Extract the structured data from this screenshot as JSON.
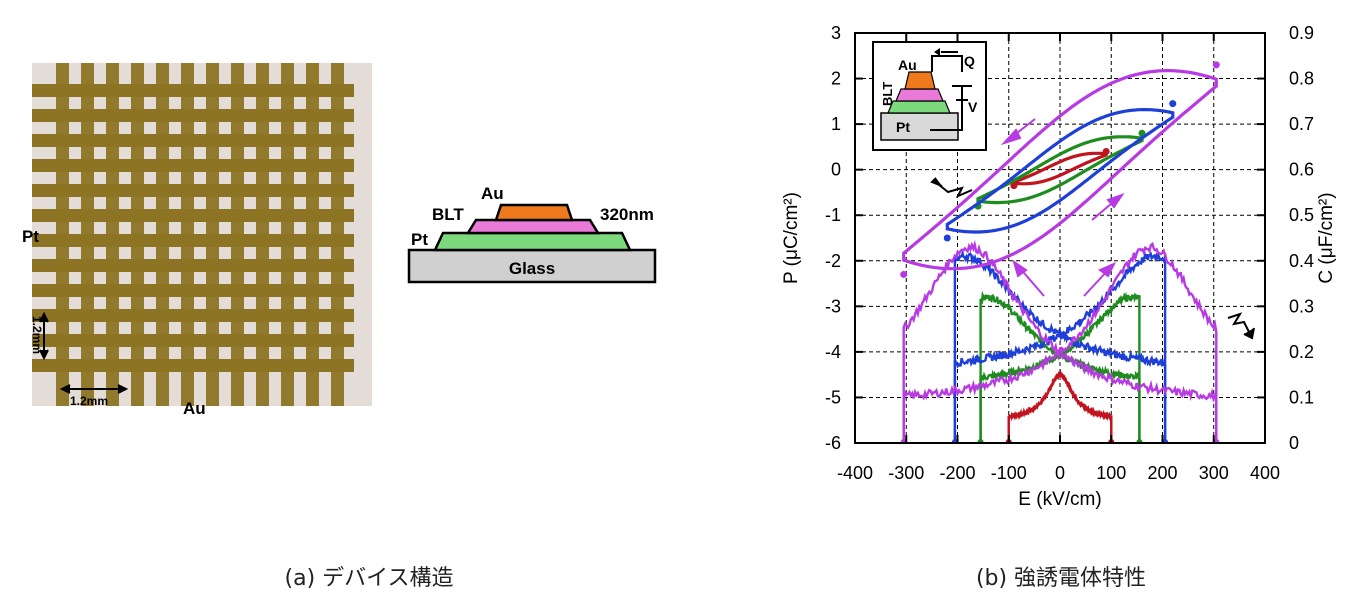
{
  "panel_a": {
    "photo_labels": {
      "pt": "Pt",
      "au": "Au",
      "dim_vertical": "1.2mm",
      "dim_horizontal": "1.2mm"
    },
    "stack_labels": {
      "au": "Au",
      "blt": "BLT",
      "thickness": "320nm",
      "pt": "Pt",
      "glass": "Glass"
    },
    "colors": {
      "au": "#ee7a1d",
      "blt": "#ea7ad8",
      "pt": "#7cd97c",
      "glass": "#d0d0d0",
      "grid_bar": "#8c7424"
    },
    "caption": "(a) デバイス構造"
  },
  "panel_b": {
    "caption": "(b) 強誘電体特性",
    "inset": {
      "label_blt": "BLT",
      "label_au": "Au",
      "label_q": "Q",
      "label_v": "V",
      "label_pt": "Pt"
    }
  },
  "chart_data": {
    "type": "line",
    "xlabel": "E (kV/cm)",
    "ylabel": "P (μC/cm²)",
    "y2label": "C (μF/cm²)",
    "xlim": [
      -400,
      400
    ],
    "ylim": [
      -6,
      3
    ],
    "y2lim": [
      0,
      0.9
    ],
    "xticks": [
      -400,
      -300,
      -200,
      -100,
      0,
      100,
      200,
      300,
      400
    ],
    "yticks": [
      -6,
      -5,
      -4,
      -3,
      -2,
      -1,
      0,
      1,
      2,
      3
    ],
    "y2ticks": [
      "0",
      "0.1",
      "0.2",
      "0.3",
      "0.4",
      "0.5",
      "0.6",
      "0.7",
      "0.8",
      "0.9"
    ],
    "grid": true,
    "hysteresis": [
      {
        "color": "#c0141e",
        "emax": 90,
        "pmax": 0.4,
        "pmin": -0.35,
        "pr": 0.18
      },
      {
        "color": "#1e8c1e",
        "emax": 160,
        "pmax": 0.8,
        "pmin": -0.8,
        "pr": 0.42
      },
      {
        "color": "#1f3fd9",
        "emax": 220,
        "pmax": 1.45,
        "pmin": -1.5,
        "pr": 0.82
      },
      {
        "color": "#b73ae3",
        "emax": 305,
        "pmax": 2.3,
        "pmin": -2.3,
        "pr": 1.55
      }
    ],
    "capacitance": [
      {
        "color": "#c0141e",
        "emin": -100,
        "emax": 100,
        "cpeak": 0.15,
        "cbase": 0.05,
        "epeak": 0
      },
      {
        "color": "#1e8c1e",
        "emin": -155,
        "emax": 155,
        "cpeak": 0.32,
        "cbase": 0.12,
        "epeak": 140
      },
      {
        "color": "#1f3fd9",
        "emin": -205,
        "emax": 205,
        "cpeak": 0.41,
        "cbase": 0.15,
        "epeak": 185
      },
      {
        "color": "#b73ae3",
        "emin": -305,
        "emax": 305,
        "cpeak": 0.43,
        "cbase": 0.08,
        "epeak": 175
      }
    ]
  }
}
